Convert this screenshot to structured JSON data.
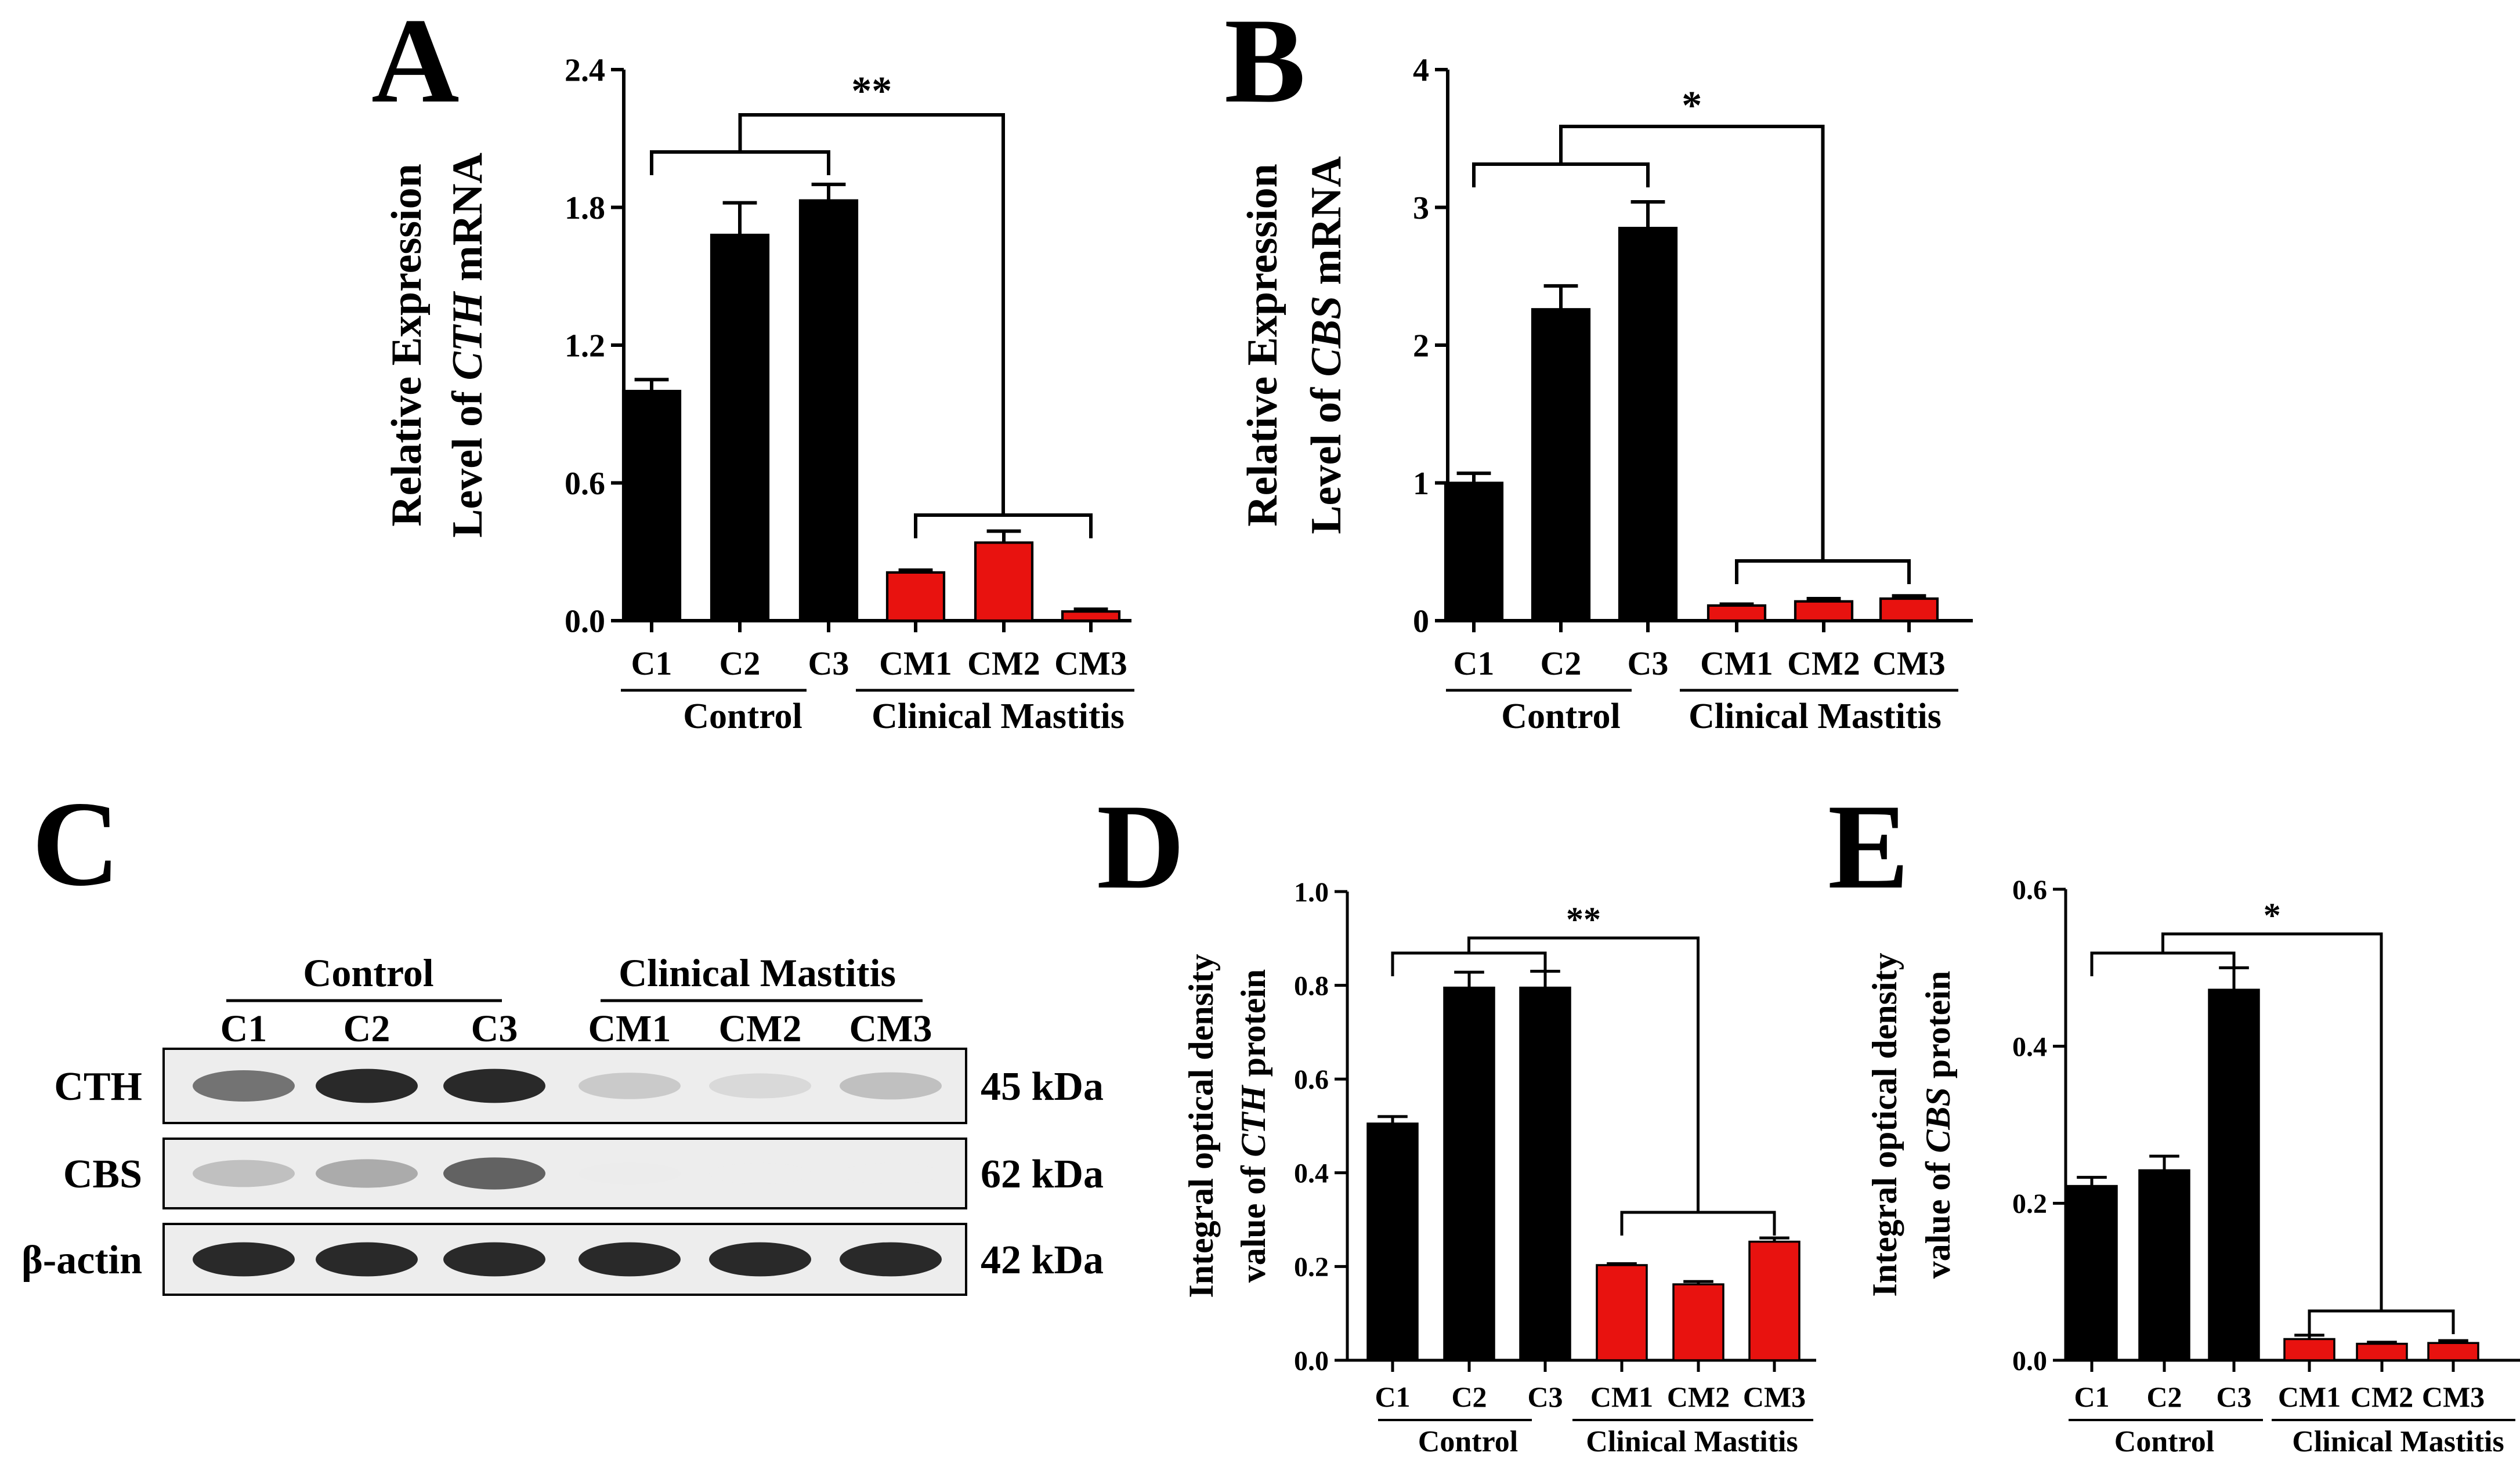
{
  "panels": {
    "A": {
      "letter": "A"
    },
    "B": {
      "letter": "B"
    },
    "C": {
      "letter": "C"
    },
    "D": {
      "letter": "D"
    },
    "E": {
      "letter": "E"
    }
  },
  "chart_data": [
    {
      "id": "A",
      "type": "bar",
      "title": "",
      "ylabel_line1": "Relative Expression",
      "ylabel_line2_pre": "Level of ",
      "ylabel_line2_gene": "CTH",
      "ylabel_line2_post": " mRNA",
      "categories": [
        "C1",
        "C2",
        "C3",
        "CM1",
        "CM2",
        "CM3"
      ],
      "values": [
        1.0,
        1.68,
        1.83,
        0.21,
        0.34,
        0.04
      ],
      "errors": [
        0.05,
        0.14,
        0.07,
        0.01,
        0.05,
        0.01
      ],
      "colors": [
        "#000000",
        "#000000",
        "#000000",
        "#e8120f",
        "#e8120f",
        "#e8120f"
      ],
      "groups": [
        {
          "label": "Control",
          "members": [
            0,
            1,
            2
          ]
        },
        {
          "label": "Clinical Mastitis",
          "members": [
            3,
            4,
            5
          ]
        }
      ],
      "ylim": [
        0,
        2.4
      ],
      "yticks": [
        "0.0",
        "0.6",
        "1.2",
        "1.8",
        "2.4"
      ],
      "significance": "**"
    },
    {
      "id": "B",
      "type": "bar",
      "title": "",
      "ylabel_line1": "Relative Expression",
      "ylabel_line2_pre": "Level of ",
      "ylabel_line2_gene": "CBS",
      "ylabel_line2_post": " mRNA",
      "categories": [
        "C1",
        "C2",
        "C3",
        "CM1",
        "CM2",
        "CM3"
      ],
      "values": [
        1.0,
        2.26,
        2.85,
        0.11,
        0.14,
        0.16
      ],
      "errors": [
        0.07,
        0.17,
        0.19,
        0.01,
        0.02,
        0.02
      ],
      "colors": [
        "#000000",
        "#000000",
        "#000000",
        "#e8120f",
        "#e8120f",
        "#e8120f"
      ],
      "groups": [
        {
          "label": "Control",
          "members": [
            0,
            1,
            2
          ]
        },
        {
          "label": "Clinical Mastitis",
          "members": [
            3,
            4,
            5
          ]
        }
      ],
      "ylim": [
        0,
        4
      ],
      "yticks": [
        "0",
        "1",
        "2",
        "3",
        "4"
      ],
      "significance": "*"
    },
    {
      "id": "D",
      "type": "bar",
      "title": "",
      "ylabel_line1": "Integral optical density",
      "ylabel_line2_pre": "value of ",
      "ylabel_line2_gene": "CTH",
      "ylabel_line2_post": " protein",
      "categories": [
        "C1",
        "C2",
        "C3",
        "CM1",
        "CM2",
        "CM3"
      ],
      "values": [
        0.505,
        0.795,
        0.795,
        0.203,
        0.162,
        0.253
      ],
      "errors": [
        0.015,
        0.033,
        0.035,
        0.003,
        0.006,
        0.008
      ],
      "colors": [
        "#000000",
        "#000000",
        "#000000",
        "#e8120f",
        "#e8120f",
        "#e8120f"
      ],
      "groups": [
        {
          "label": "Control",
          "members": [
            0,
            1,
            2
          ]
        },
        {
          "label": "Clinical Mastitis",
          "members": [
            3,
            4,
            5
          ]
        }
      ],
      "ylim": [
        0,
        1.0
      ],
      "yticks": [
        "0.0",
        "0.2",
        "0.4",
        "0.6",
        "0.8",
        "1.0"
      ],
      "significance": "**"
    },
    {
      "id": "E",
      "type": "bar",
      "title": "",
      "ylabel_line1": "Integral optical density",
      "ylabel_line2_pre": "value of ",
      "ylabel_line2_gene": "CBS",
      "ylabel_line2_post": " protein",
      "categories": [
        "C1",
        "C2",
        "C3",
        "CM1",
        "CM2",
        "CM3"
      ],
      "values": [
        0.222,
        0.242,
        0.472,
        0.027,
        0.021,
        0.022
      ],
      "errors": [
        0.011,
        0.018,
        0.028,
        0.005,
        0.002,
        0.003
      ],
      "colors": [
        "#000000",
        "#000000",
        "#000000",
        "#e8120f",
        "#e8120f",
        "#e8120f"
      ],
      "groups": [
        {
          "label": "Control",
          "members": [
            0,
            1,
            2
          ]
        },
        {
          "label": "Clinical Mastitis",
          "members": [
            3,
            4,
            5
          ]
        }
      ],
      "ylim": [
        0,
        0.6
      ],
      "yticks": [
        "0.0",
        "0.2",
        "0.4",
        "0.6"
      ],
      "significance": "*"
    }
  ],
  "western_blot": {
    "groups": [
      "Control",
      "Clinical Mastitis"
    ],
    "lanes": [
      "C1",
      "C2",
      "C3",
      "CM1",
      "CM2",
      "CM3"
    ],
    "rows": [
      {
        "label": "CTH",
        "size": "45 kDa",
        "intensities": [
          0.75,
          0.95,
          0.95,
          0.4,
          0.3,
          0.45
        ]
      },
      {
        "label": "CBS",
        "size": "62 kDa",
        "intensities": [
          0.45,
          0.55,
          0.8,
          0.03,
          0.02,
          0.02
        ]
      },
      {
        "label": "β-actin",
        "size": "42 kDa",
        "intensities": [
          0.95,
          0.95,
          0.95,
          0.95,
          0.95,
          0.95
        ]
      }
    ]
  }
}
